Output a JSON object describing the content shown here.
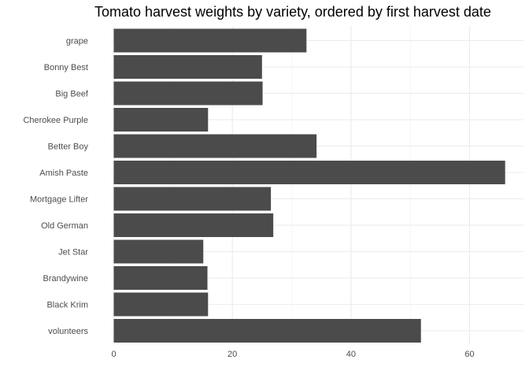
{
  "chart_data": {
    "type": "bar",
    "orientation": "horizontal",
    "title": "Tomato harvest weights by variety, ordered by first harvest date",
    "xlabel": "",
    "ylabel": "",
    "categories": [
      "grape",
      "Bonny Best",
      "Big Beef",
      "Cherokee Purple",
      "Better Boy",
      "Amish Paste",
      "Mortgage Lifter",
      "Old German",
      "Jet Star",
      "Brandywine",
      "Black Krim",
      "volunteers"
    ],
    "values": [
      32.5,
      25.0,
      25.1,
      15.9,
      34.2,
      66.0,
      26.5,
      26.9,
      15.1,
      15.8,
      15.9,
      51.8
    ],
    "xlim": [
      0,
      66
    ],
    "x_ticks": [
      0,
      20,
      40,
      60
    ],
    "grid": true,
    "bar_color": "#4b4b4b"
  }
}
